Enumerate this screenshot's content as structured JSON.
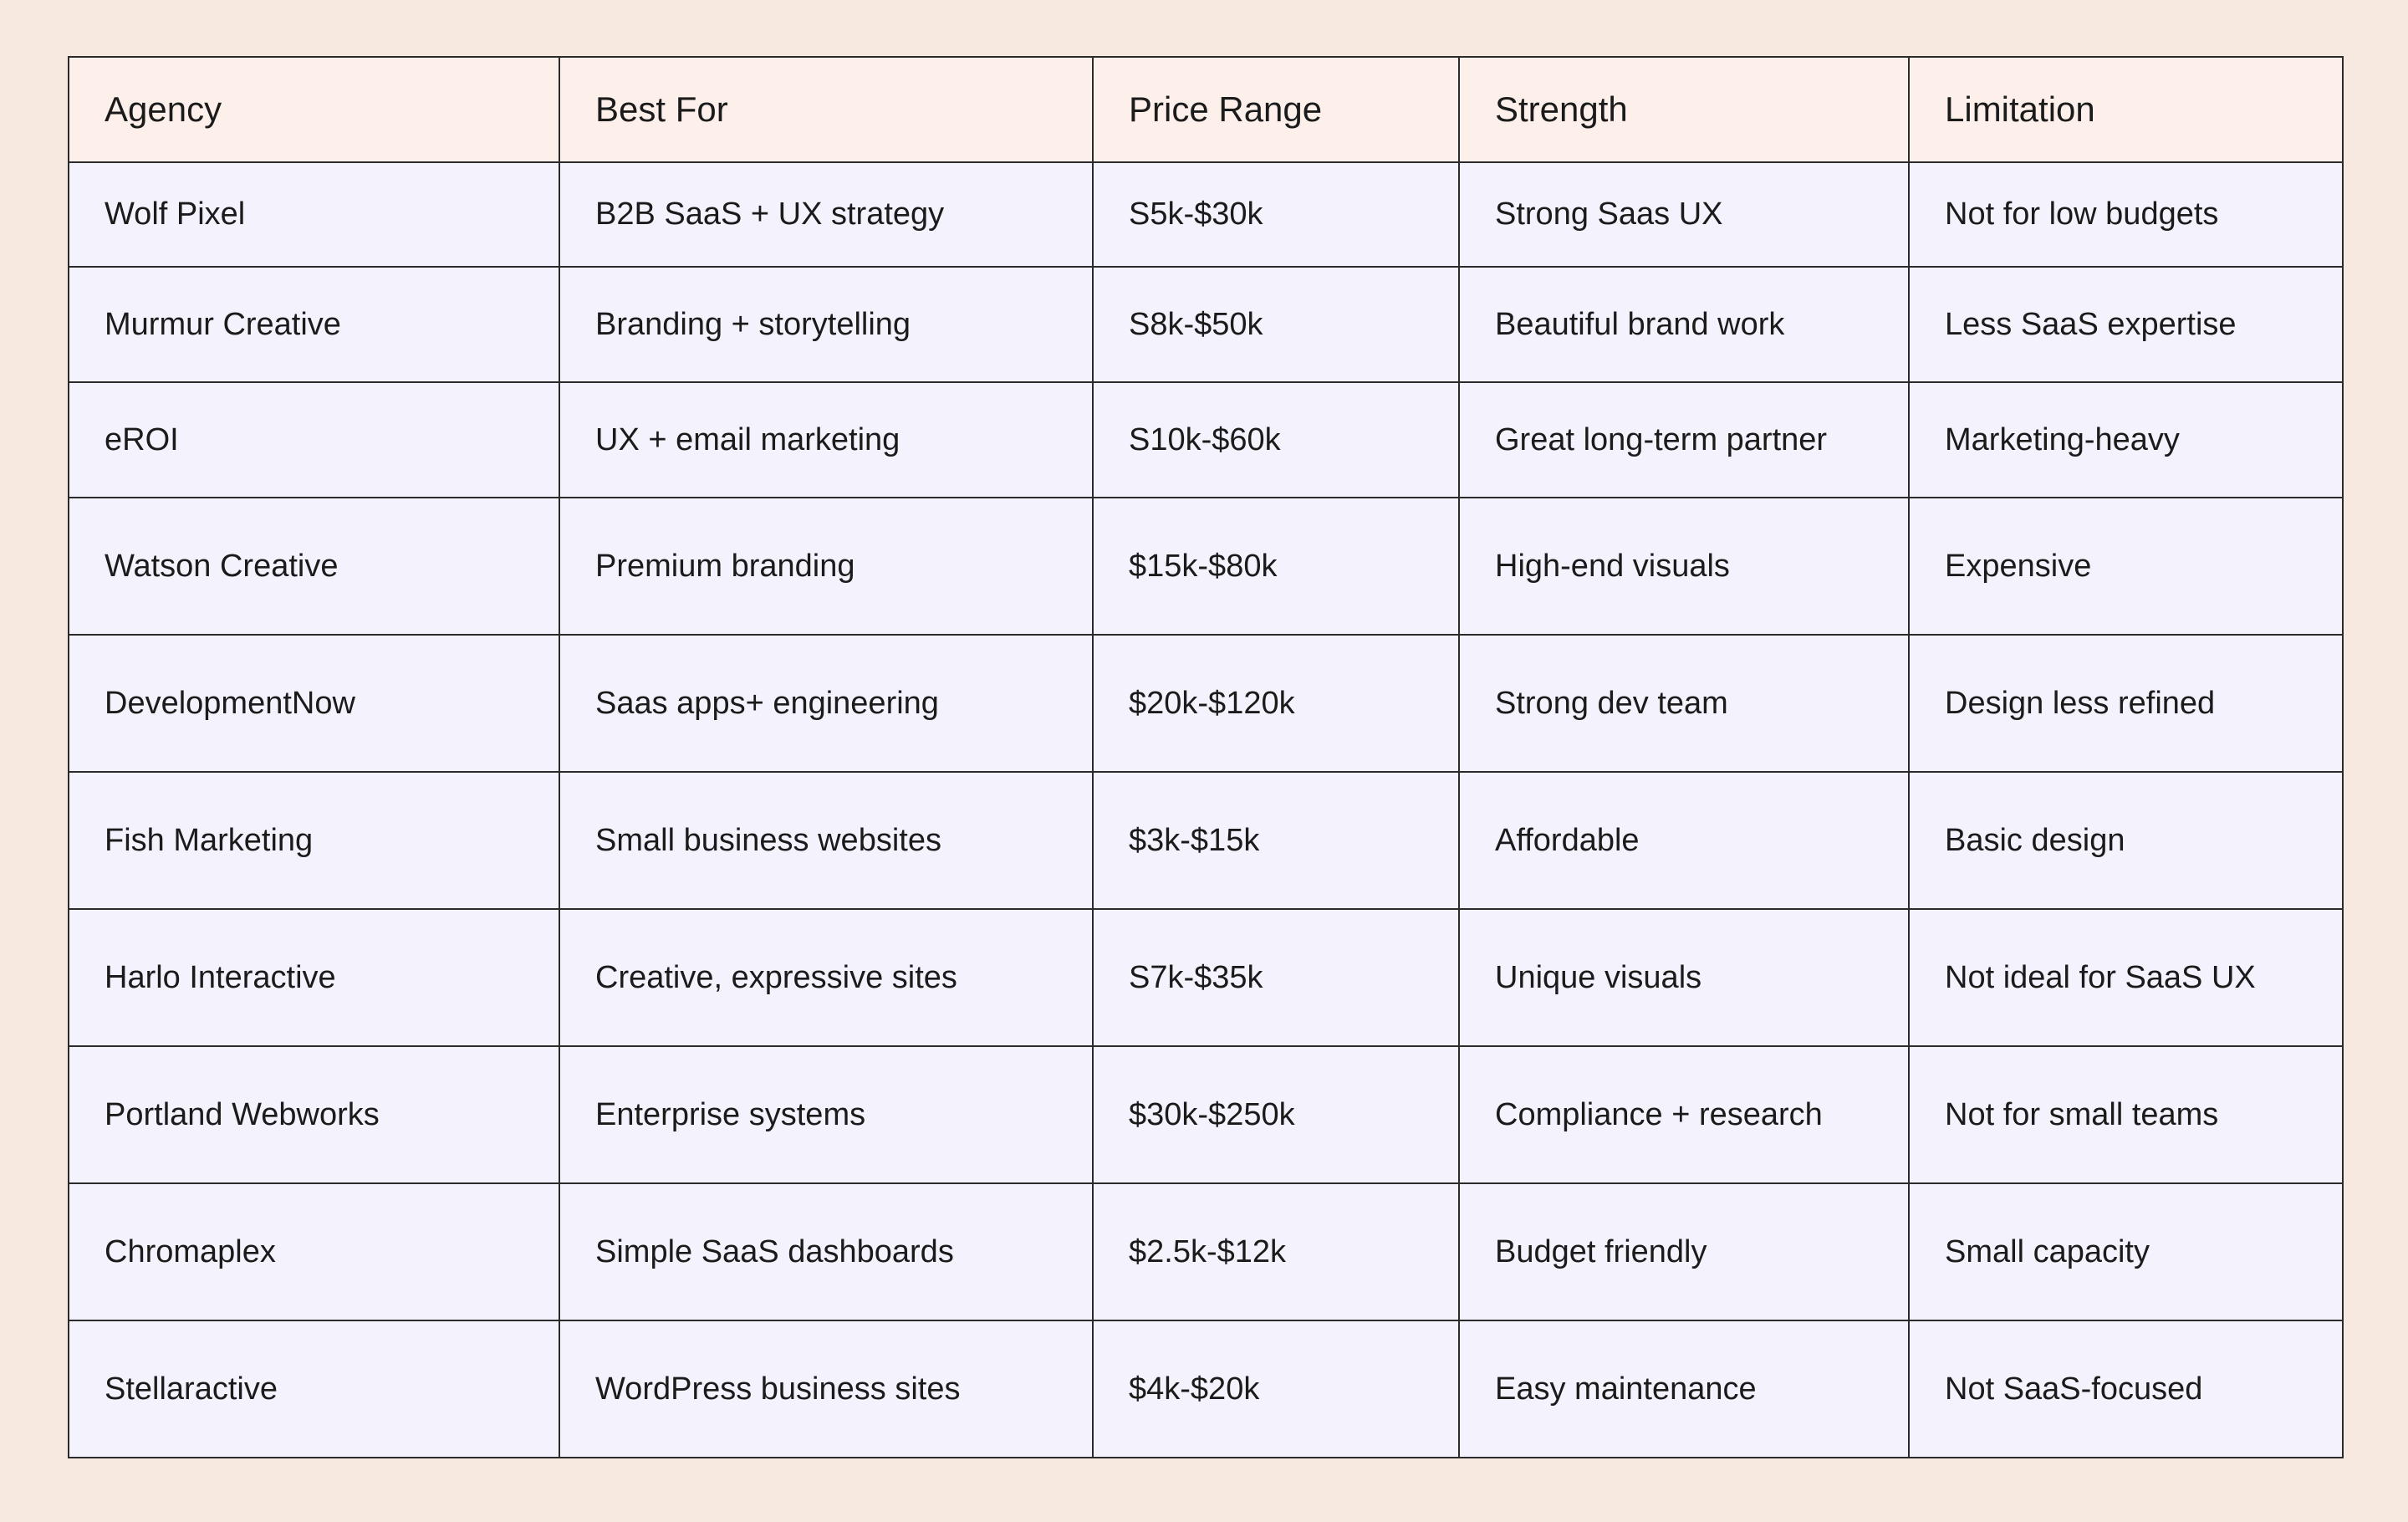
{
  "table": {
    "columns": [
      "Agency",
      "Best For",
      "Price Range",
      "Strength",
      "Limitation"
    ],
    "rows": [
      [
        "Wolf Pixel",
        "B2B SaaS + UX strategy",
        "S5k-$30k",
        "Strong Saas UX",
        "Not for low budgets"
      ],
      [
        "Murmur Creative",
        "Branding + storytelling",
        "S8k-$50k",
        "Beautiful brand work",
        "Less SaaS expertise"
      ],
      [
        "eROI",
        "UX + email marketing",
        "S10k-$60k",
        "Great long-term partner",
        "Marketing-heavy"
      ],
      [
        "Watson Creative",
        "Premium branding",
        "$15k-$80k",
        "High-end visuals",
        "Expensive"
      ],
      [
        "DevelopmentNow",
        "Saas apps+ engineering",
        "$20k-$120k",
        "Strong dev team",
        "Design less refined"
      ],
      [
        "Fish Marketing",
        "Small business websites",
        "$3k-$15k",
        "Affordable",
        "Basic design"
      ],
      [
        "Harlo Interactive",
        "Creative, expressive sites",
        "S7k-$35k",
        "Unique visuals",
        "Not ideal for SaaS UX"
      ],
      [
        "Portland Webworks",
        "Enterprise systems",
        "$30k-$250k",
        "Compliance + research",
        "Not for small teams"
      ],
      [
        "Chromaplex",
        "Simple SaaS dashboards",
        "$2.5k-$12k",
        "Budget friendly",
        "Small capacity"
      ],
      [
        "Stellaractive",
        "WordPress business sites",
        "$4k-$20k",
        "Easy maintenance",
        "Not SaaS-focused"
      ]
    ]
  },
  "colors": {
    "page_background": "#f7e8e0",
    "header_background": "#fdf0ea",
    "cell_background": "#f4f3fd",
    "border": "#2b2b2b",
    "text": "#1b1b1b"
  }
}
